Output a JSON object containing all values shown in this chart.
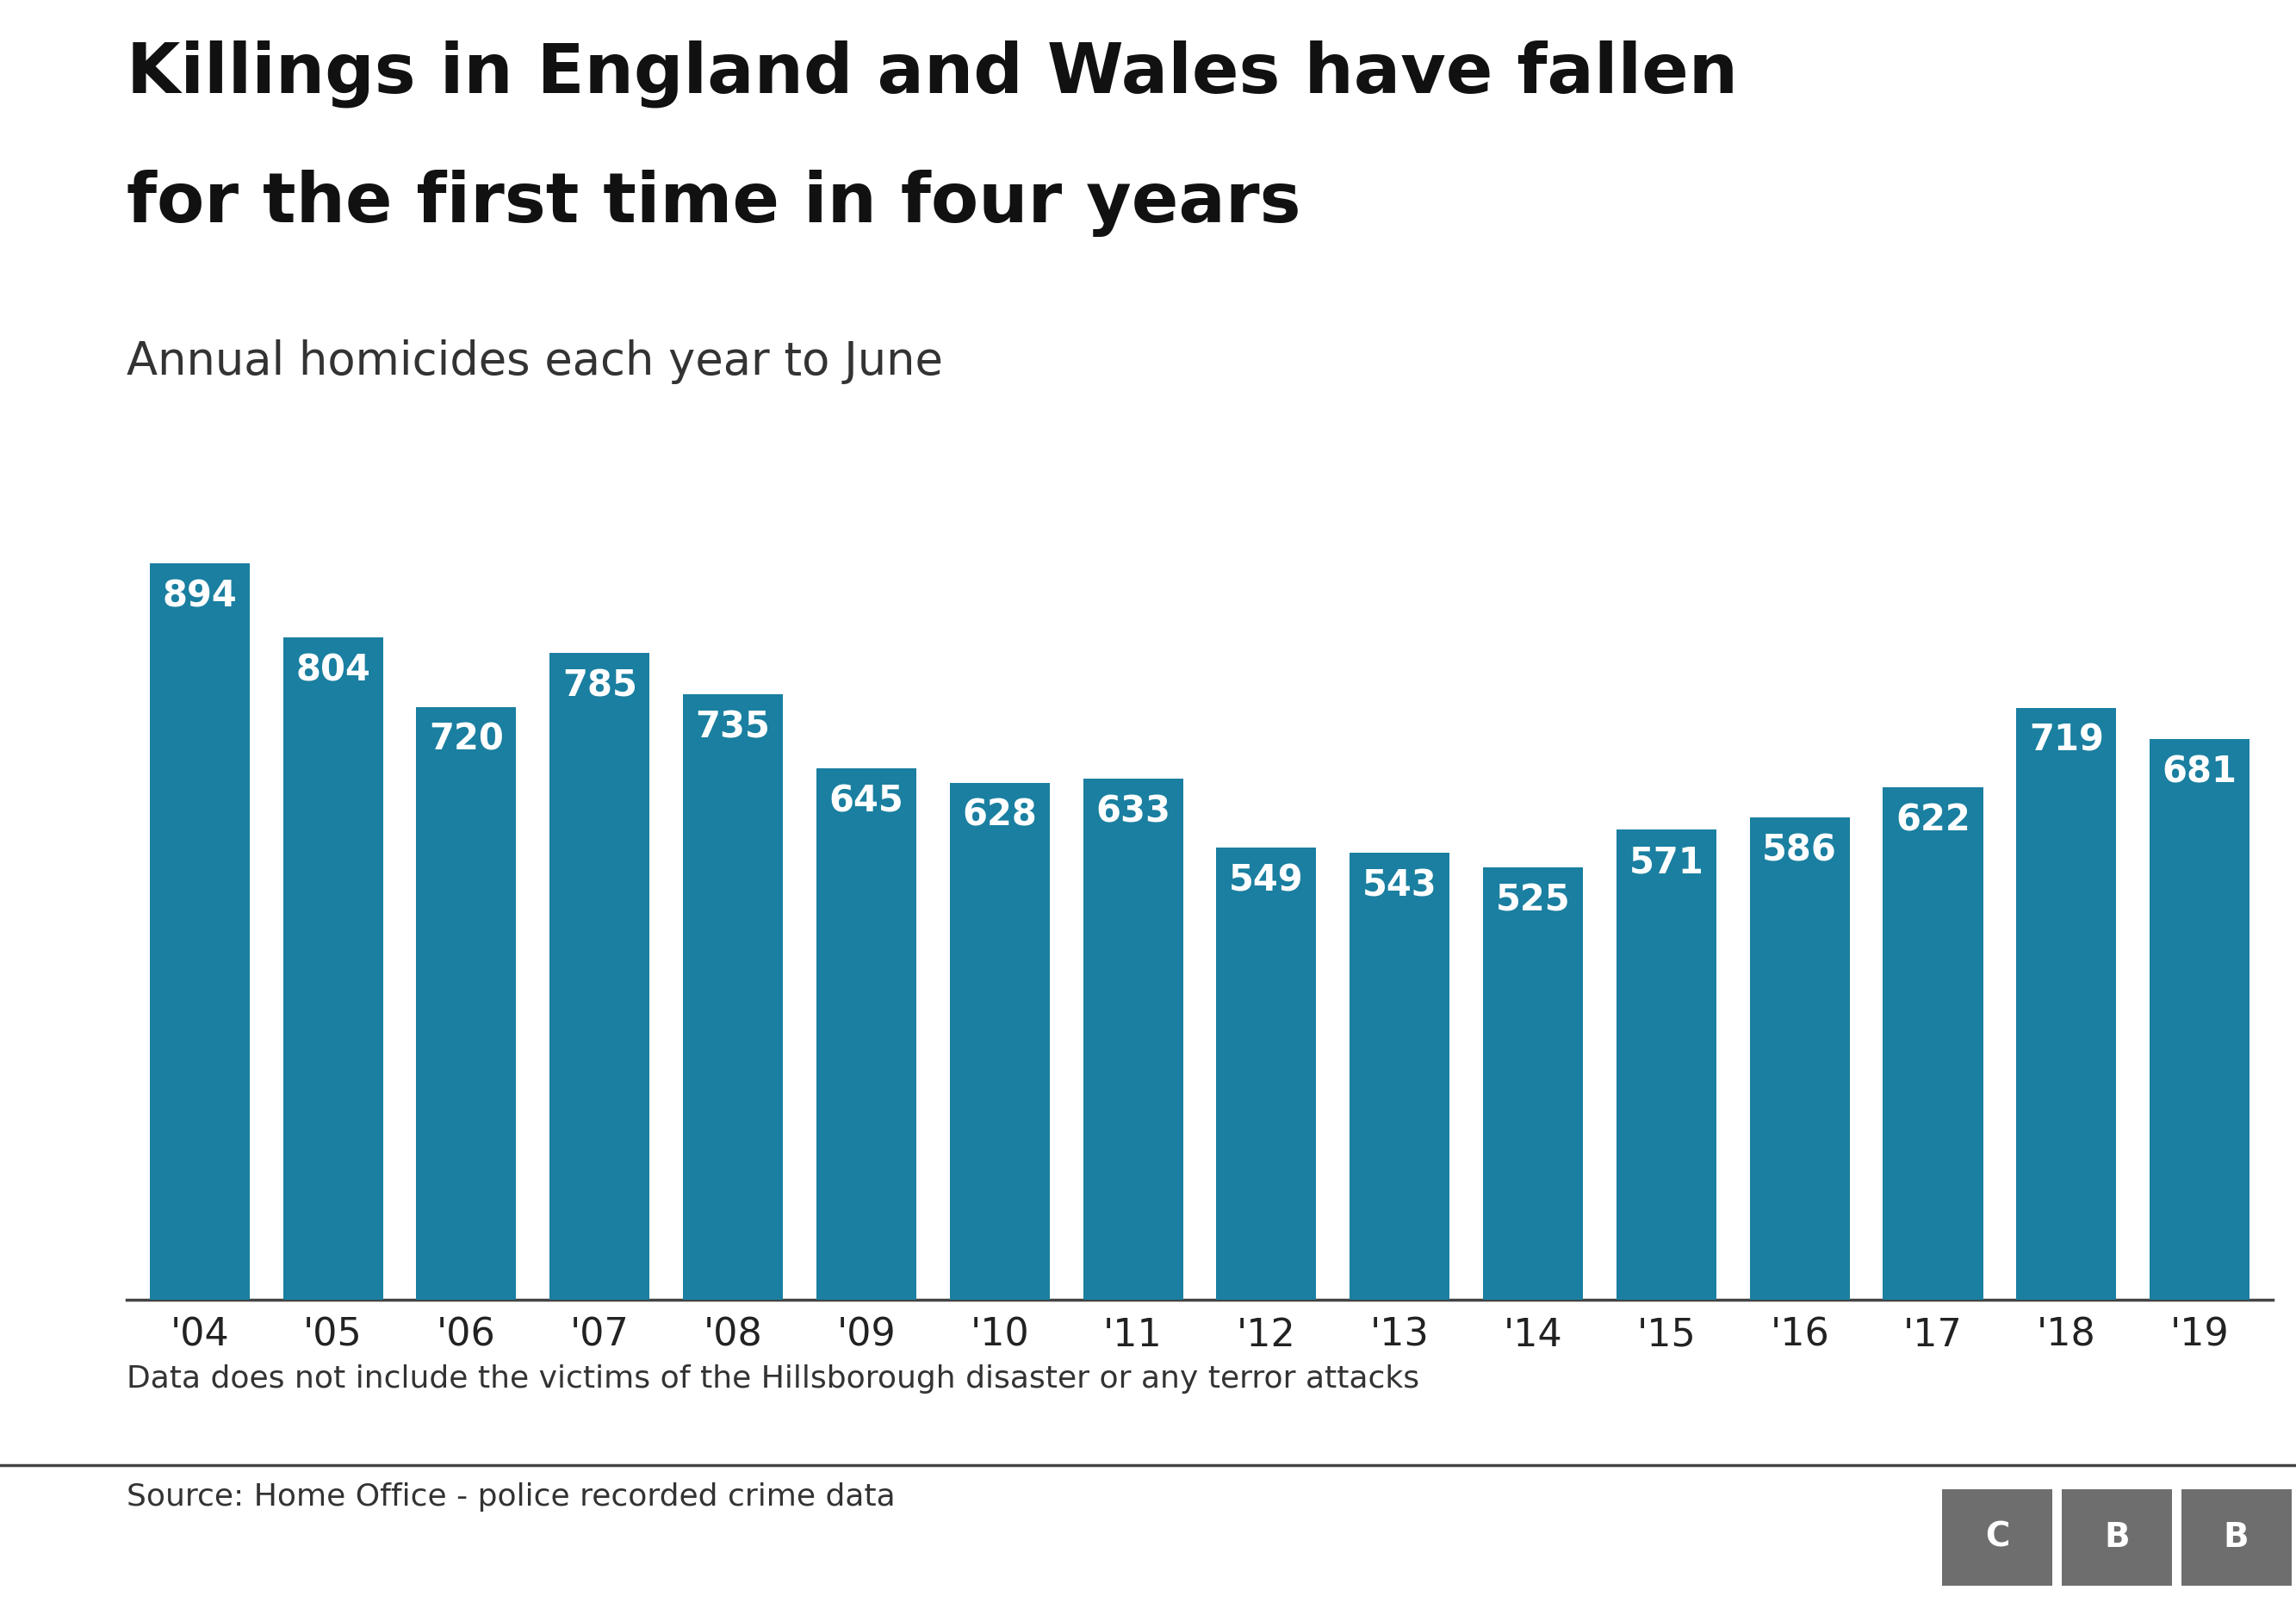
{
  "title_line1": "Killings in England and Wales have fallen",
  "title_line2": "for the first time in four years",
  "subtitle": "Annual homicides each year to June",
  "categories": [
    "'04",
    "'05",
    "'06",
    "'07",
    "'08",
    "'09",
    "'10",
    "'11",
    "'12",
    "'13",
    "'14",
    "'15",
    "'16",
    "'17",
    "'18",
    "'19"
  ],
  "values": [
    894,
    804,
    720,
    785,
    735,
    645,
    628,
    633,
    549,
    543,
    525,
    571,
    586,
    622,
    719,
    681
  ],
  "bar_color": "#1a7fa0",
  "label_color": "#ffffff",
  "background_color": "#ffffff",
  "axis_line_color": "#444444",
  "tick_label_color": "#222222",
  "footnote": "Data does not include the victims of the Hillsborough disaster or any terror attacks",
  "source": "Source: Home Office - police recorded crime data",
  "bbc_box_color": "#6e6e6e",
  "bbc_text_color": "#ffffff",
  "title_fontsize": 58,
  "subtitle_fontsize": 38,
  "label_fontsize": 30,
  "tick_fontsize": 32,
  "footnote_fontsize": 26,
  "source_fontsize": 26,
  "ylim": [
    0,
    980
  ]
}
